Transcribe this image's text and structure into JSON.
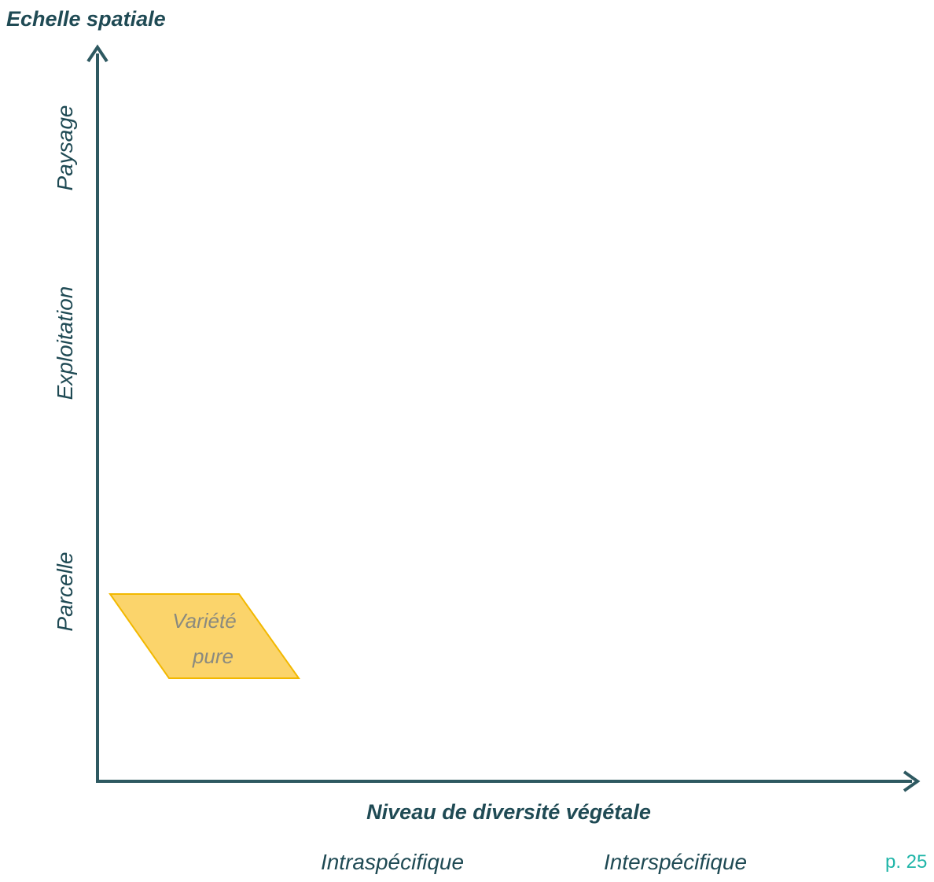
{
  "colors": {
    "axis": "#2e5961",
    "axis_text": "#1f4a54",
    "shape_fill": "#fbd46b",
    "shape_stroke": "#f2b800",
    "shape_text": "#8a8a7f",
    "page_number": "#1fb5a8"
  },
  "y_axis": {
    "title": "Echelle spatiale",
    "levels": [
      "Paysage",
      "Exploitation",
      "Parcelle"
    ]
  },
  "x_axis": {
    "title": "Niveau de diversité végétale",
    "levels": [
      "Intraspécifique",
      "Interspécifique"
    ]
  },
  "shape": {
    "line1": "Variété",
    "line2": "pure"
  },
  "page_number": "p. 25"
}
